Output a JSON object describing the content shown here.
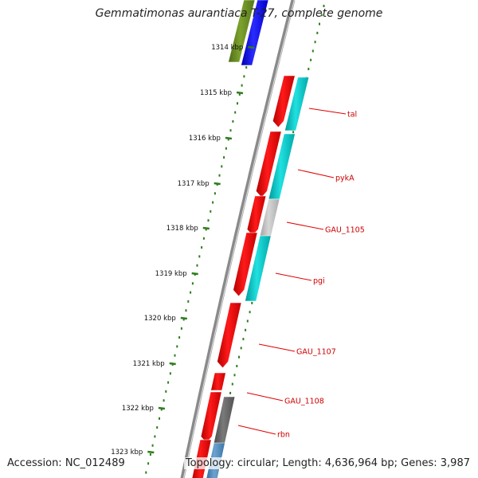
{
  "title": "Gemmatimonas aurantiaca T-27, complete genome",
  "accession": "Accession: NC_012489",
  "topology": "Topology: circular; Length: 4,636,964 bp; Genes: 3,987",
  "kbp_labels": [
    "1314 kbp",
    "1315 kbp",
    "1316 kbp",
    "1317 kbp",
    "1318 kbp",
    "1319 kbp",
    "1320 kbp",
    "1321 kbp",
    "1322 kbp",
    "1323 kbp"
  ],
  "gene_labels": [
    "tal",
    "pykA",
    "GAU_1105",
    "pgi",
    "GAU_1107",
    "GAU_1108",
    "rbn"
  ],
  "colors": {
    "background": "#ffffff",
    "backbone": "#8a8a8a",
    "tick": "#2f7d1e",
    "gene_label": "#cc0000",
    "red": "#ff0000",
    "cyan": "#00c8c8",
    "blue": "#0000ff",
    "olive": "#6b8e23",
    "gray": "#c0c0c0",
    "dark_gray": "#666666",
    "steel_blue": "#4682b4"
  }
}
